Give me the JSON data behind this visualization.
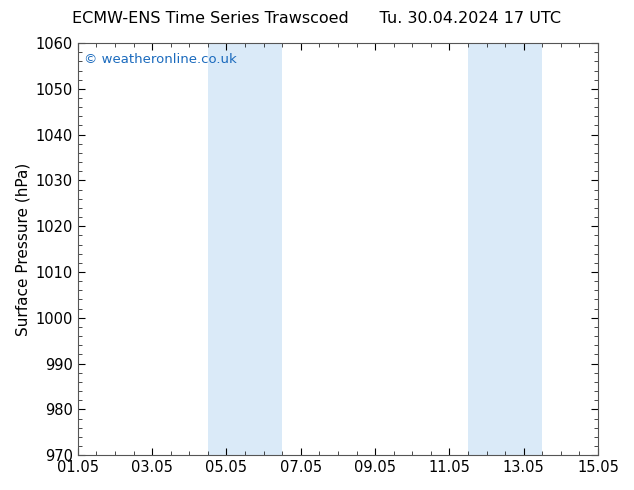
{
  "title_left": "ECMW-ENS Time Series Trawscoed",
  "title_right": "Tu. 30.04.2024 17 UTC",
  "ylabel": "Surface Pressure (hPa)",
  "ylim": [
    970,
    1060
  ],
  "yticks": [
    970,
    980,
    990,
    1000,
    1010,
    1020,
    1030,
    1040,
    1050,
    1060
  ],
  "xlim_start": 0,
  "xlim_end": 14,
  "xtick_positions": [
    0,
    2,
    4,
    6,
    8,
    10,
    12,
    14
  ],
  "xtick_labels": [
    "01.05",
    "03.05",
    "05.05",
    "07.05",
    "09.05",
    "11.05",
    "13.05",
    "15.05"
  ],
  "shaded_bands": [
    {
      "xmin": 3.5,
      "xmax": 5.5
    },
    {
      "xmin": 10.5,
      "xmax": 12.5
    }
  ],
  "band_color": "#daeaf8",
  "watermark": "© weatheronline.co.uk",
  "watermark_color": "#1a6abd",
  "background_color": "#ffffff",
  "plot_background": "#ffffff",
  "title_fontsize": 11.5,
  "label_fontsize": 11,
  "tick_fontsize": 10.5
}
